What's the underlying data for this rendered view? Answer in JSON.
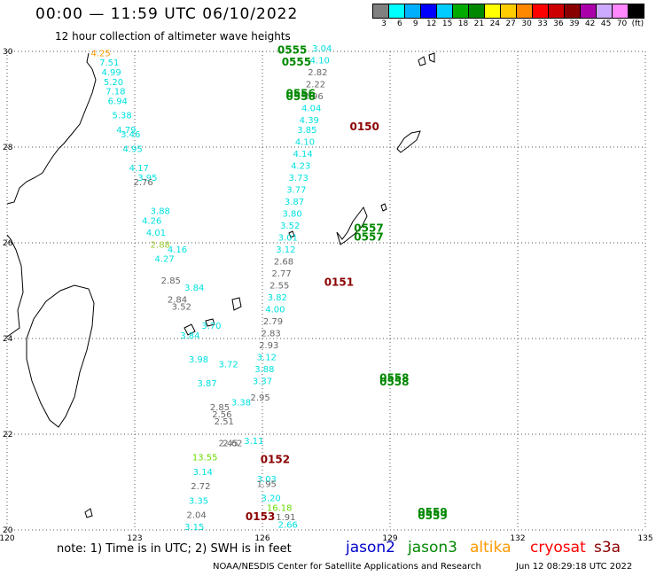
{
  "header": {
    "title": "00:00 — 11:59 UTC 06/10/2022",
    "subtitle": "12 hour collection of altimeter wave heights"
  },
  "scale": {
    "colors": [
      "#808080",
      "#00ffff",
      "#00b0ff",
      "#0000ff",
      "#00ccff",
      "#00aa00",
      "#008800",
      "#ffff00",
      "#ffcc00",
      "#ff8800",
      "#ff0000",
      "#cc0000",
      "#880000",
      "#aa00aa",
      "#ccaaff",
      "#ff88ff",
      "#000000"
    ],
    "labels": [
      "3",
      "6",
      "9",
      "12",
      "15",
      "18",
      "21",
      "24",
      "27",
      "30",
      "33",
      "36",
      "39",
      "42",
      "45",
      "70",
      "(ft)"
    ]
  },
  "map": {
    "lon_ticks": [
      "120",
      "123",
      "126",
      "129",
      "132",
      "135"
    ],
    "lat_ticks": [
      "30",
      "28",
      "26",
      "24",
      "22",
      "20"
    ],
    "track_colors": {
      "aqua": "#00e0e0",
      "gray": "#666666",
      "green": "#008800",
      "darkred": "#8b0000",
      "yellowgreen": "#99cc33",
      "lime": "#66dd00",
      "orange": "#ff9900"
    },
    "time_labels": [
      {
        "text": "0555",
        "color": "green",
        "lon": 126.7,
        "lat": 29.95
      },
      {
        "text": "0555",
        "color": "green",
        "lon": 126.8,
        "lat": 29.7
      },
      {
        "text": "0556",
        "color": "green",
        "lon": 126.9,
        "lat": 29.05
      },
      {
        "text": "0556",
        "color": "green",
        "lon": 126.9,
        "lat": 28.98
      },
      {
        "text": "0557",
        "color": "green",
        "lon": 128.5,
        "lat": 26.23
      },
      {
        "text": "0557",
        "color": "green",
        "lon": 128.5,
        "lat": 26.05
      },
      {
        "text": "0558",
        "color": "green",
        "lon": 129.1,
        "lat": 23.1
      },
      {
        "text": "0558",
        "color": "green",
        "lon": 129.1,
        "lat": 23.02
      },
      {
        "text": "0559",
        "color": "green",
        "lon": 130.0,
        "lat": 20.3
      },
      {
        "text": "0559",
        "color": "green",
        "lon": 130.0,
        "lat": 20.22
      },
      {
        "text": "0150",
        "color": "darkred",
        "lon": 128.4,
        "lat": 28.35
      },
      {
        "text": "0151",
        "color": "darkred",
        "lon": 127.8,
        "lat": 25.1
      },
      {
        "text": "0152",
        "color": "darkred",
        "lon": 126.3,
        "lat": 21.4
      },
      {
        "text": "0153",
        "color": "darkred",
        "lon": 125.95,
        "lat": 20.2
      }
    ],
    "track_a": [
      {
        "text": "7.51",
        "color": "aqua",
        "lon": 122.4,
        "lat": 29.7
      },
      {
        "text": "4.99",
        "color": "aqua",
        "lon": 122.45,
        "lat": 29.5
      },
      {
        "text": "5.20",
        "color": "aqua",
        "lon": 122.5,
        "lat": 29.3
      },
      {
        "text": "7.18",
        "color": "aqua",
        "lon": 122.55,
        "lat": 29.1
      },
      {
        "text": "6.94",
        "color": "aqua",
        "lon": 122.6,
        "lat": 28.9
      },
      {
        "text": "5.38",
        "color": "aqua",
        "lon": 122.7,
        "lat": 28.6
      },
      {
        "text": "4.79",
        "color": "aqua",
        "lon": 122.8,
        "lat": 28.3
      },
      {
        "text": "4.95",
        "color": "aqua",
        "lon": 122.95,
        "lat": 27.9
      },
      {
        "text": "4.17",
        "color": "aqua",
        "lon": 123.1,
        "lat": 27.5
      },
      {
        "text": "2.76",
        "color": "gray",
        "lon": 123.2,
        "lat": 27.2
      },
      {
        "text": "4.26",
        "color": "aqua",
        "lon": 123.4,
        "lat": 26.4
      },
      {
        "text": "4.01",
        "color": "aqua",
        "lon": 123.5,
        "lat": 26.15
      },
      {
        "text": "2.88",
        "color": "yellowgreen",
        "lon": 123.6,
        "lat": 25.9
      },
      {
        "text": "4.27",
        "color": "aqua",
        "lon": 123.7,
        "lat": 25.6
      },
      {
        "text": "2.85",
        "color": "gray",
        "lon": 123.85,
        "lat": 25.15
      },
      {
        "text": "2.84",
        "color": "gray",
        "lon": 124.0,
        "lat": 24.75
      },
      {
        "text": "3.52",
        "color": "gray",
        "lon": 124.1,
        "lat": 24.6
      },
      {
        "text": "3.84",
        "color": "aqua",
        "lon": 124.3,
        "lat": 24.0
      },
      {
        "text": "3.98",
        "color": "aqua",
        "lon": 124.5,
        "lat": 23.5
      },
      {
        "text": "3.87",
        "color": "aqua",
        "lon": 124.7,
        "lat": 23.0
      },
      {
        "text": "2.85",
        "color": "gray",
        "lon": 125.0,
        "lat": 22.5
      },
      {
        "text": "2.56",
        "color": "gray",
        "lon": 125.05,
        "lat": 22.35
      },
      {
        "text": "2.51",
        "color": "gray",
        "lon": 125.1,
        "lat": 22.2
      },
      {
        "text": "2.45",
        "color": "gray",
        "lon": 125.2,
        "lat": 21.75
      },
      {
        "text": "2.62",
        "color": "gray",
        "lon": 125.3,
        "lat": 21.75
      },
      {
        "text": "13.55",
        "color": "lime",
        "lon": 124.65,
        "lat": 21.45
      },
      {
        "text": "3.14",
        "color": "aqua",
        "lon": 124.6,
        "lat": 21.15
      },
      {
        "text": "2.72",
        "color": "gray",
        "lon": 124.55,
        "lat": 20.85
      },
      {
        "text": "3.35",
        "color": "aqua",
        "lon": 124.5,
        "lat": 20.55
      },
      {
        "text": "2.04",
        "color": "gray",
        "lon": 124.45,
        "lat": 20.25
      },
      {
        "text": "3.15",
        "color": "aqua",
        "lon": 124.4,
        "lat": 20.0
      }
    ],
    "track_b": [
      {
        "text": "3.04",
        "color": "aqua",
        "lon": 127.4,
        "lat": 30.0
      },
      {
        "text": "4.10",
        "color": "aqua",
        "lon": 127.35,
        "lat": 29.75
      },
      {
        "text": "2.82",
        "color": "gray",
        "lon": 127.3,
        "lat": 29.5
      },
      {
        "text": "2.22",
        "color": "gray",
        "lon": 127.25,
        "lat": 29.25
      },
      {
        "text": "2.96",
        "color": "gray",
        "lon": 127.2,
        "lat": 29.0
      },
      {
        "text": "4.04",
        "color": "aqua",
        "lon": 127.15,
        "lat": 28.75
      },
      {
        "text": "4.39",
        "color": "aqua",
        "lon": 127.1,
        "lat": 28.5
      },
      {
        "text": "3.85",
        "color": "aqua",
        "lon": 127.05,
        "lat": 28.3
      },
      {
        "text": "4.10",
        "color": "aqua",
        "lon": 127.0,
        "lat": 28.05
      },
      {
        "text": "4.14",
        "color": "aqua",
        "lon": 126.95,
        "lat": 27.8
      },
      {
        "text": "4.23",
        "color": "aqua",
        "lon": 126.9,
        "lat": 27.55
      },
      {
        "text": "3.73",
        "color": "aqua",
        "lon": 126.85,
        "lat": 27.3
      },
      {
        "text": "3.77",
        "color": "aqua",
        "lon": 126.8,
        "lat": 27.05
      },
      {
        "text": "3.87",
        "color": "aqua",
        "lon": 126.75,
        "lat": 26.8
      },
      {
        "text": "3.80",
        "color": "aqua",
        "lon": 126.7,
        "lat": 26.55
      },
      {
        "text": "3.52",
        "color": "aqua",
        "lon": 126.65,
        "lat": 26.3
      },
      {
        "text": "3.01",
        "color": "aqua",
        "lon": 126.6,
        "lat": 26.05
      },
      {
        "text": "3.12",
        "color": "aqua",
        "lon": 126.55,
        "lat": 25.8
      },
      {
        "text": "2.68",
        "color": "gray",
        "lon": 126.5,
        "lat": 25.55
      },
      {
        "text": "2.77",
        "color": "gray",
        "lon": 126.45,
        "lat": 25.3
      },
      {
        "text": "2.55",
        "color": "gray",
        "lon": 126.4,
        "lat": 25.05
      },
      {
        "text": "3.82",
        "color": "aqua",
        "lon": 126.35,
        "lat": 24.8
      },
      {
        "text": "4.00",
        "color": "aqua",
        "lon": 126.3,
        "lat": 24.55
      },
      {
        "text": "2.79",
        "color": "gray",
        "lon": 126.25,
        "lat": 24.3
      },
      {
        "text": "2.83",
        "color": "gray",
        "lon": 126.2,
        "lat": 24.05
      },
      {
        "text": "2.93",
        "color": "gray",
        "lon": 126.15,
        "lat": 23.8
      },
      {
        "text": "3.12",
        "color": "aqua",
        "lon": 126.1,
        "lat": 23.55
      },
      {
        "text": "3.88",
        "color": "aqua",
        "lon": 126.05,
        "lat": 23.3
      },
      {
        "text": "3.37",
        "color": "aqua",
        "lon": 126.0,
        "lat": 23.05
      },
      {
        "text": "2.95",
        "color": "gray",
        "lon": 125.95,
        "lat": 22.7
      },
      {
        "text": "1.95",
        "color": "gray",
        "lon": 126.1,
        "lat": 20.9
      },
      {
        "text": "3.20",
        "color": "aqua",
        "lon": 126.2,
        "lat": 20.6
      },
      {
        "text": "16.18",
        "color": "lime",
        "lon": 126.4,
        "lat": 20.4
      },
      {
        "text": "1.91",
        "color": "gray",
        "lon": 126.55,
        "lat": 20.2
      },
      {
        "text": "2.66",
        "color": "aqua",
        "lon": 126.6,
        "lat": 20.05
      }
    ],
    "track_c": [
      {
        "text": "3.46",
        "color": "aqua",
        "lon": 122.9,
        "lat": 28.2
      },
      {
        "text": "3.95",
        "color": "aqua",
        "lon": 123.3,
        "lat": 27.3
      },
      {
        "text": "3.88",
        "color": "aqua",
        "lon": 123.6,
        "lat": 26.6
      },
      {
        "text": "4.16",
        "color": "aqua",
        "lon": 124.0,
        "lat": 25.8
      },
      {
        "text": "3.84",
        "color": "aqua",
        "lon": 124.4,
        "lat": 25.0
      },
      {
        "text": "3.70",
        "color": "aqua",
        "lon": 124.8,
        "lat": 24.2
      },
      {
        "text": "3.72",
        "color": "aqua",
        "lon": 125.2,
        "lat": 23.4
      },
      {
        "text": "3.38",
        "color": "aqua",
        "lon": 125.5,
        "lat": 22.6
      },
      {
        "text": "3.11",
        "color": "aqua",
        "lon": 125.8,
        "lat": 21.8
      },
      {
        "text": "3.03",
        "color": "aqua",
        "lon": 126.1,
        "lat": 21.0
      }
    ],
    "orange_labels": [
      {
        "text": "4.25",
        "color": "orange",
        "lon": 122.2,
        "lat": 29.9
      }
    ]
  },
  "footer": {
    "note": "note:  1) Time is in UTC;  2) SWH is in feet",
    "legend": [
      {
        "text": "jason2",
        "color": "#0000cc"
      },
      {
        "text": "jason3",
        "color": "#008800"
      },
      {
        "text": "altika",
        "color": "#ff9900"
      },
      {
        "text": "cryosat",
        "color": "#ff0000"
      },
      {
        "text": "s3a",
        "color": "#8b0000"
      }
    ],
    "credit": "NOAA/NESDIS Center for Satellite Applications and Research",
    "date": "Jun 12 08:29:18 UTC 2022"
  }
}
